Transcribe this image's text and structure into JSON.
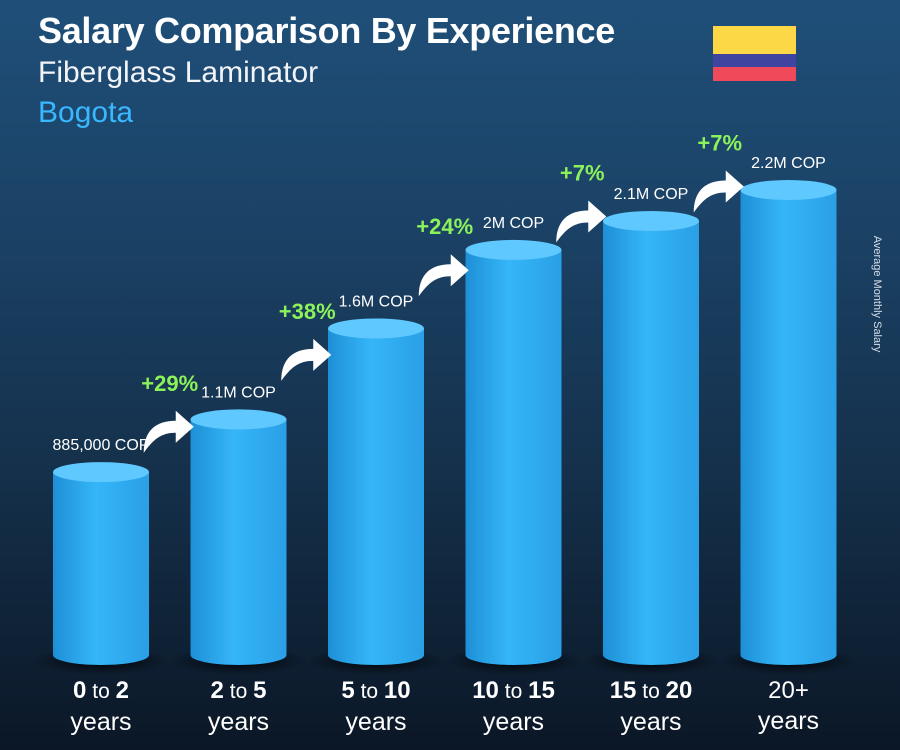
{
  "header": {
    "title": "Salary Comparison By Experience",
    "subtitle": "Fiberglass Laminator",
    "city": "Bogota"
  },
  "flag": {
    "colors": [
      "#fcd846",
      "#3f44a0",
      "#f04a5a"
    ]
  },
  "side_label": "Average Monthly Salary",
  "colors": {
    "bar": "#2eaef3",
    "bar_top": "#5ec8ff",
    "increase": "#8cf25a",
    "value_label": "#ffffff"
  },
  "chart_data": {
    "type": "bar",
    "categories": [
      {
        "from": "0",
        "to": "2",
        "joiner": "to",
        "unit": "years"
      },
      {
        "from": "2",
        "to": "5",
        "joiner": "to",
        "unit": "years"
      },
      {
        "from": "5",
        "to": "10",
        "joiner": "to",
        "unit": "years"
      },
      {
        "from": "10",
        "to": "15",
        "joiner": "to",
        "unit": "years"
      },
      {
        "from": "15",
        "to": "20",
        "joiner": "to",
        "unit": "years"
      },
      {
        "from": "20+",
        "to": "",
        "joiner": "",
        "unit": "years"
      }
    ],
    "values": [
      885000,
      1140000,
      1580000,
      1960000,
      2100000,
      2250000
    ],
    "value_labels": [
      "885,000 COP",
      "1.1M COP",
      "1.6M COP",
      "2M COP",
      "2.1M COP",
      "2.2M COP"
    ],
    "increases": [
      "+29%",
      "+38%",
      "+24%",
      "+7%",
      "+7%"
    ],
    "currency": "COP",
    "ylim": [
      0,
      2250000
    ],
    "grid": false,
    "legend": "none"
  }
}
